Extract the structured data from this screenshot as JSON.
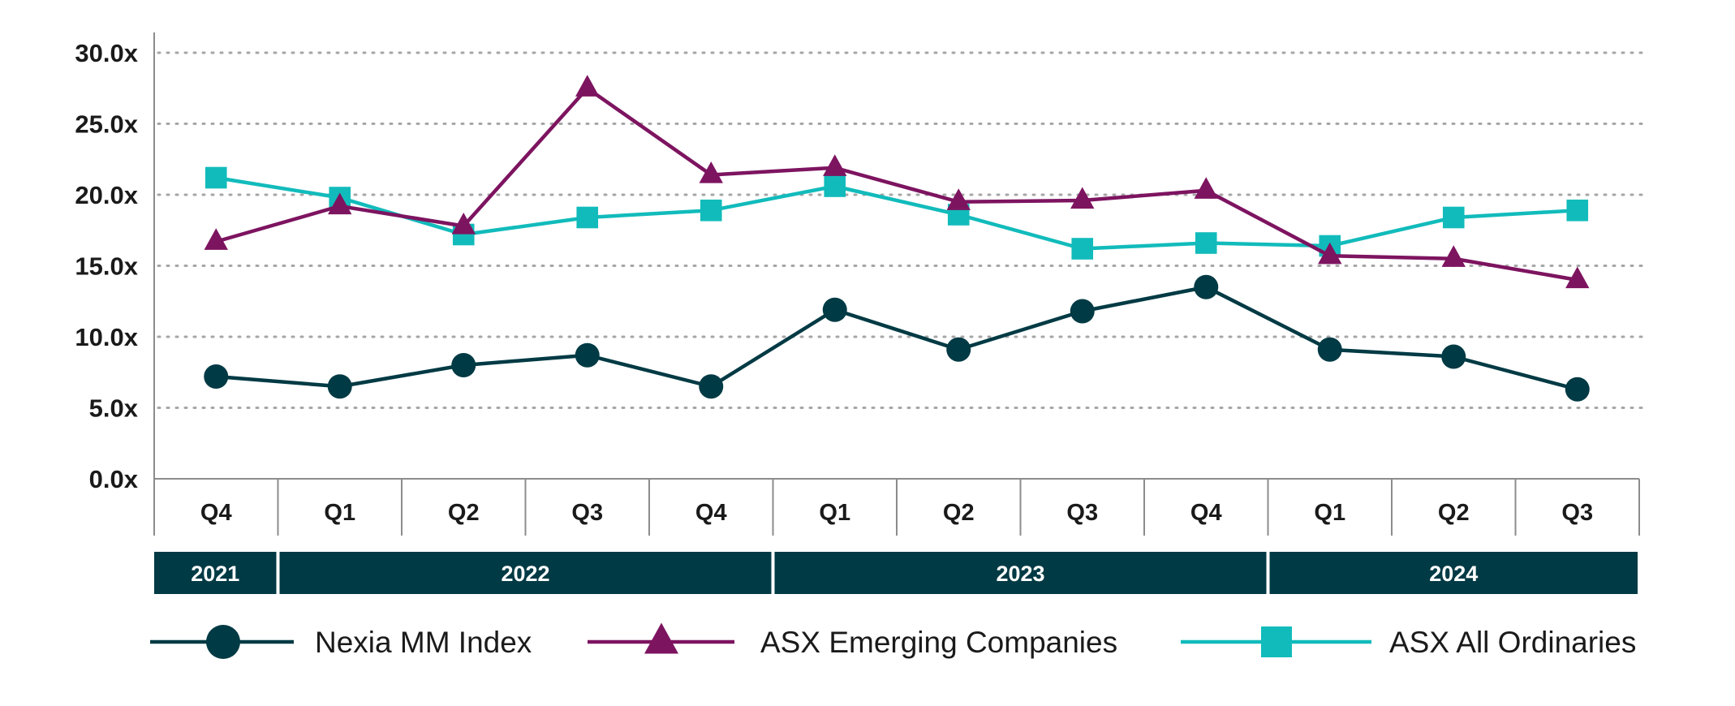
{
  "chart_data": {
    "type": "line",
    "categories": [
      "Q4",
      "Q1",
      "Q2",
      "Q3",
      "Q4",
      "Q1",
      "Q2",
      "Q3",
      "Q4",
      "Q1",
      "Q2",
      "Q3"
    ],
    "year_groups": [
      {
        "label": "2021",
        "quarters": 1
      },
      {
        "label": "2022",
        "quarters": 4
      },
      {
        "label": "2023",
        "quarters": 4
      },
      {
        "label": "2024",
        "quarters": 3
      }
    ],
    "y_ticks": [
      "0.0x",
      "5.0x",
      "10.0x",
      "15.0x",
      "20.0x",
      "25.0x",
      "30.0x"
    ],
    "ylim": [
      0,
      30
    ],
    "grid": true,
    "legend_position": "bottom",
    "series": [
      {
        "name": "Nexia MM Index",
        "marker": "circle",
        "color": "#003a44",
        "values": [
          7.2,
          6.5,
          8.0,
          8.7,
          6.5,
          11.9,
          9.1,
          11.8,
          13.5,
          9.1,
          8.6,
          6.3
        ]
      },
      {
        "name": "ASX Emerging Companies",
        "marker": "triangle",
        "color": "#7d1460",
        "values": [
          16.7,
          19.2,
          17.8,
          27.5,
          21.4,
          21.9,
          19.5,
          19.6,
          20.3,
          15.7,
          15.5,
          14.0
        ]
      },
      {
        "name": "ASX All Ordinaries",
        "marker": "square",
        "color": "#12bbbb",
        "values": [
          21.2,
          19.8,
          17.2,
          18.4,
          18.9,
          20.6,
          18.6,
          16.2,
          16.6,
          16.4,
          18.4,
          18.9
        ]
      }
    ]
  }
}
